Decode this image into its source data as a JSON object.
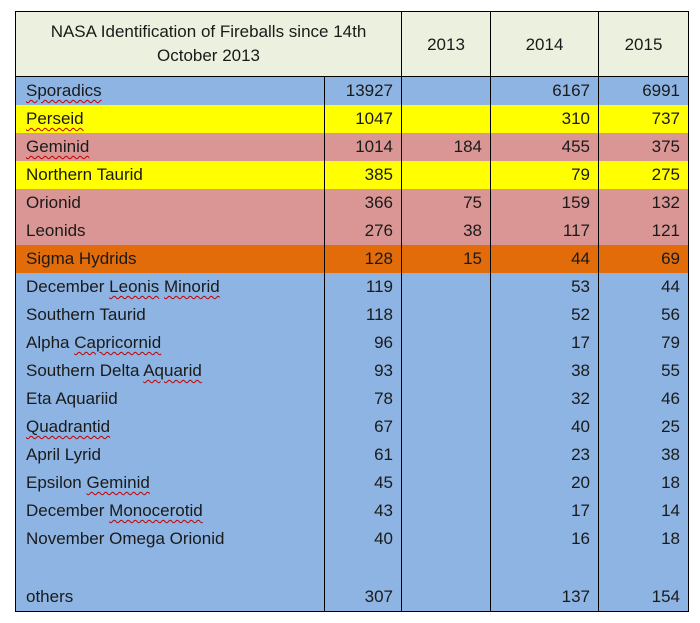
{
  "colors": {
    "header_bg": "#ebf1de",
    "blue": "#8db4e2",
    "yellow": "#ffff00",
    "pink": "#da9694",
    "orange": "#e26b0a"
  },
  "header": {
    "title": "NASA Identification of Fireballs since 14th October 2013",
    "col_2013": "2013",
    "col_2014": "2014",
    "col_2015": "2015"
  },
  "rows": [
    {
      "name": "Sporadics",
      "total": "13927",
      "y2013": "",
      "y2014": "6167",
      "y2015": "6991",
      "color": "#8db4e2",
      "underline": [
        "Sporadics"
      ]
    },
    {
      "name": "Perseid",
      "total": "1047",
      "y2013": "",
      "y2014": "310",
      "y2015": "737",
      "color": "#ffff00",
      "underline": [
        "Perseid"
      ]
    },
    {
      "name": "Geminid",
      "total": "1014",
      "y2013": "184",
      "y2014": "455",
      "y2015": "375",
      "color": "#da9694",
      "underline": [
        "Geminid"
      ]
    },
    {
      "name": "Northern Taurid",
      "total": "385",
      "y2013": "",
      "y2014": "79",
      "y2015": "275",
      "color": "#ffff00",
      "underline": []
    },
    {
      "name": "Orionid",
      "total": "366",
      "y2013": "75",
      "y2014": "159",
      "y2015": "132",
      "color": "#da9694",
      "underline": []
    },
    {
      "name": "Leonids",
      "total": "276",
      "y2013": "38",
      "y2014": "117",
      "y2015": "121",
      "color": "#da9694",
      "underline": []
    },
    {
      "name": "Sigma Hydrids",
      "total": "128",
      "y2013": "15",
      "y2014": "44",
      "y2015": "69",
      "color": "#e26b0a",
      "underline": []
    },
    {
      "name": "December Leonis Minorid",
      "total": "119",
      "y2013": "",
      "y2014": "53",
      "y2015": "44",
      "color": "#8db4e2",
      "underline": [
        "Leonis",
        "Minorid"
      ]
    },
    {
      "name": "Southern Taurid",
      "total": "118",
      "y2013": "",
      "y2014": "52",
      "y2015": "56",
      "color": "#8db4e2",
      "underline": []
    },
    {
      "name": "Alpha Capricornid",
      "total": "96",
      "y2013": "",
      "y2014": "17",
      "y2015": "79",
      "color": "#8db4e2",
      "underline": [
        "Capricornid"
      ]
    },
    {
      "name": "Southern Delta Aquarid",
      "total": "93",
      "y2013": "",
      "y2014": "38",
      "y2015": "55",
      "color": "#8db4e2",
      "underline": [
        "Aquarid"
      ]
    },
    {
      "name": "Eta Aquariid",
      "total": "78",
      "y2013": "",
      "y2014": "32",
      "y2015": "46",
      "color": "#8db4e2",
      "underline": []
    },
    {
      "name": "Quadrantid",
      "total": "67",
      "y2013": "",
      "y2014": "40",
      "y2015": "25",
      "color": "#8db4e2",
      "underline": [
        "Quadrantid"
      ]
    },
    {
      "name": "April Lyrid",
      "total": "61",
      "y2013": "",
      "y2014": "23",
      "y2015": "38",
      "color": "#8db4e2",
      "underline": []
    },
    {
      "name": "Epsilon Geminid",
      "total": "45",
      "y2013": "",
      "y2014": "20",
      "y2015": "18",
      "color": "#8db4e2",
      "underline": [
        "Geminid"
      ]
    },
    {
      "name": "December Monocerotid",
      "total": "43",
      "y2013": "",
      "y2014": "17",
      "y2015": "14",
      "color": "#8db4e2",
      "underline": [
        "Monocerotid"
      ]
    },
    {
      "name": "November Omega Orionid",
      "total": "40",
      "y2013": "",
      "y2014": "16",
      "y2015": "18",
      "color": "#8db4e2",
      "underline": []
    },
    {
      "name": "",
      "total": "",
      "y2013": "",
      "y2014": "",
      "y2015": "",
      "color": "#8db4e2",
      "underline": []
    },
    {
      "name": "others",
      "total": "307",
      "y2013": "",
      "y2014": "137",
      "y2015": "154",
      "color": "#8db4e2",
      "underline": []
    }
  ]
}
